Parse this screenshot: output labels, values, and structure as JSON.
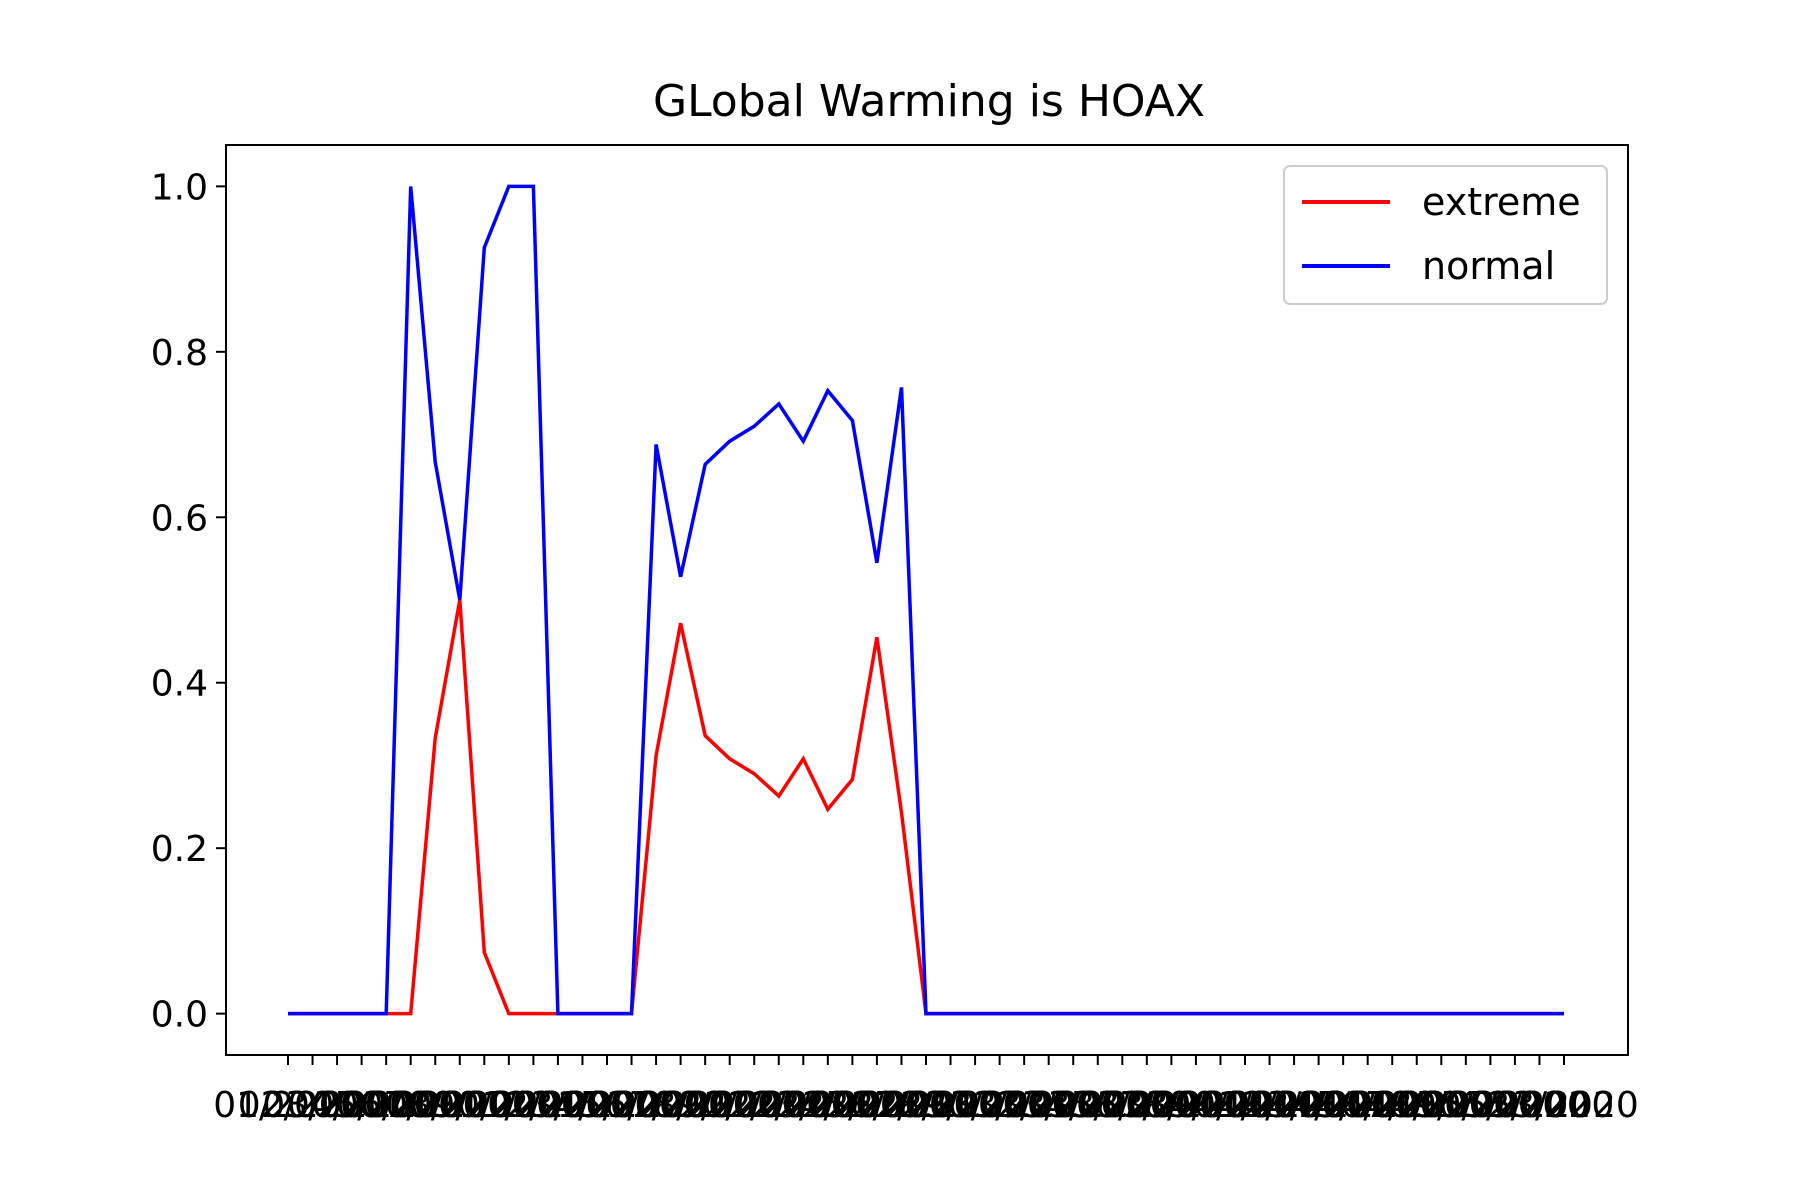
{
  "chart_data": {
    "type": "line",
    "title": "GLobal Warming is HOAX",
    "xlabel": "",
    "ylabel": "",
    "x": [
      "01/2020",
      "02/2020",
      "03/2020",
      "04/2020",
      "05/2020",
      "06/2020",
      "07/2020",
      "08/2020",
      "09/2020",
      "10/2020",
      "11/2020",
      "12/2020",
      "13/2020",
      "14/2020",
      "15/2020",
      "16/2020",
      "17/2020",
      "18/2020",
      "19/2020",
      "20/2020",
      "21/2020",
      "22/2020",
      "23/2020",
      "24/2020",
      "25/2020",
      "26/2020",
      "27/2020",
      "28/2020",
      "29/2020",
      "30/2020",
      "31/2020",
      "32/2020",
      "33/2020",
      "34/2020",
      "35/2020",
      "36/2020",
      "37/2020",
      "38/2020",
      "39/2020",
      "40/2020",
      "41/2020",
      "42/2020",
      "43/2020",
      "44/2020",
      "45/2020",
      "46/2020",
      "47/2020",
      "48/2020",
      "49/2020",
      "50/2020",
      "51/2020",
      "52/2020",
      "53/2020"
    ],
    "series": [
      {
        "name": "extreme",
        "color": "#ff0000",
        "values": [
          0,
          0,
          0,
          0,
          0,
          0,
          0.333,
          0.5,
          0.074,
          0,
          0,
          0,
          0,
          0,
          0,
          0.312,
          0.472,
          0.336,
          0.308,
          0.29,
          0.263,
          0.308,
          0.247,
          0.283,
          0.455,
          0.243,
          0,
          0,
          0,
          0,
          0,
          0,
          0,
          0,
          0,
          0,
          0,
          0,
          0,
          0,
          0,
          0,
          0,
          0,
          0,
          0,
          0,
          0,
          0,
          0,
          0,
          0,
          0
        ]
      },
      {
        "name": "normal",
        "color": "#0000ff",
        "values": [
          0,
          0,
          0,
          0,
          0,
          1.0,
          0.667,
          0.5,
          0.926,
          1.0,
          1.0,
          0,
          0,
          0,
          0,
          0.688,
          0.528,
          0.664,
          0.692,
          0.71,
          0.737,
          0.692,
          0.753,
          0.717,
          0.545,
          0.757,
          0,
          0,
          0,
          0,
          0,
          0,
          0,
          0,
          0,
          0,
          0,
          0,
          0,
          0,
          0,
          0,
          0,
          0,
          0,
          0,
          0,
          0,
          0,
          0,
          0,
          0,
          0
        ]
      }
    ],
    "ylim": [
      -0.05,
      1.05
    ],
    "yticks": [
      "0.0",
      "0.2",
      "0.4",
      "0.6",
      "0.8",
      "1.0"
    ],
    "grid": false,
    "legend": "top-right"
  }
}
